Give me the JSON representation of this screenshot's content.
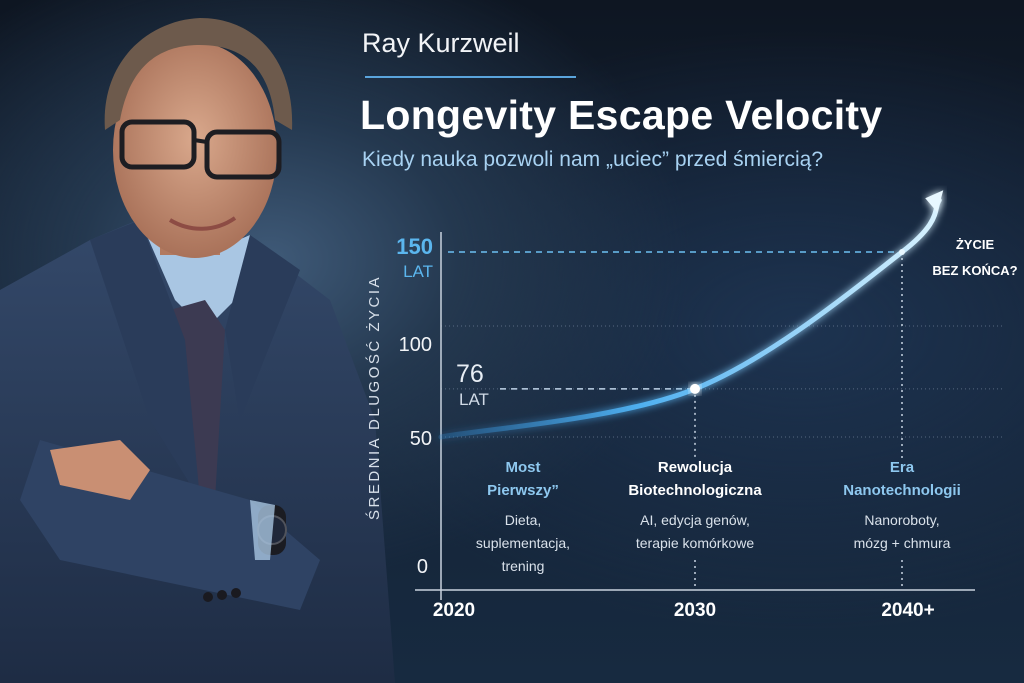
{
  "header": {
    "name": "Ray Kurzweil",
    "title": "Longevity Escape Velocity",
    "subtitle": "Kiedy nauka pozwoli nam „uciec” przed śmiercią?"
  },
  "colors": {
    "accent": "#5bb6ee",
    "background": "#142235",
    "curve": "#7fd0ff"
  },
  "chart_data": {
    "type": "line",
    "ylabel": "ŚREDNIA DLUGOŚĆ ŻYCIA",
    "xlabel": "",
    "x_ticks": [
      "2020",
      "2030",
      "2040+"
    ],
    "y_ticks": [
      "0",
      "50",
      "100",
      "150"
    ],
    "series": [
      {
        "name": "Średnia długość życia",
        "x": [
          2020,
          2030,
          2040
        ],
        "y": [
          50,
          76,
          150
        ]
      }
    ],
    "highlights": [
      {
        "value": "76",
        "unit": "LAT",
        "year": 2030
      },
      {
        "value": "150",
        "unit": "LAT",
        "year": 2040
      }
    ],
    "annotation": {
      "line1": "ŻYCIE",
      "line2": "BEZ KOŃCA?"
    },
    "phases": [
      {
        "title1": "Most",
        "title2": "Pierwszy”",
        "desc": [
          "Dieta,",
          "suplementacja,",
          "trening"
        ]
      },
      {
        "title1": "Rewolucja",
        "title2": "Biotechnologiczna",
        "desc": [
          "AI, edycja genów,",
          "terapie komórkowe"
        ]
      },
      {
        "title1": "Era",
        "title2": "Nanotechnologii",
        "desc": [
          "Nanoroboty,",
          "mózg + chmura"
        ]
      }
    ]
  }
}
